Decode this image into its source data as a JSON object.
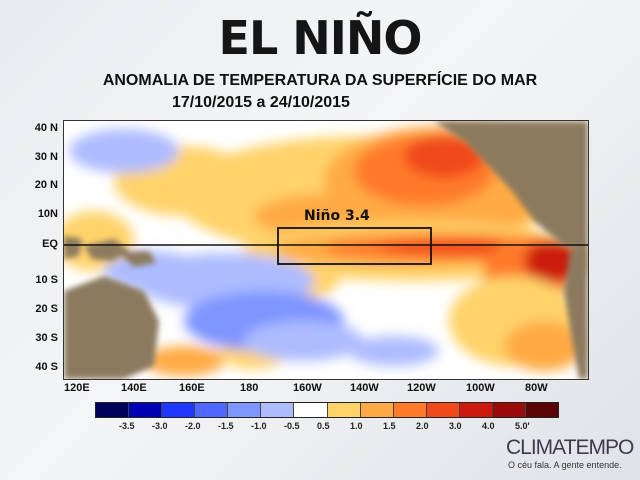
{
  "header": {
    "title": "EL NIÑO",
    "subtitle": "ANOMALIA DE TEMPERATURA DA SUPERFÍCIE DO MAR",
    "dates": "17/10/2015 a 24/10/2015"
  },
  "map": {
    "lat_labels": [
      "40 N",
      "30 N",
      "20 N",
      "10N",
      "EQ",
      "10 S",
      "20 S",
      "30 S",
      "40 S"
    ],
    "lon_labels": [
      "120E",
      "140E",
      "160E",
      "180",
      "160W",
      "140W",
      "120W",
      "100W",
      "80W"
    ],
    "region_label": "Niño 3.4",
    "colors": {
      "land": "#8c7a5e",
      "ocean_neutral": "#ffffff"
    }
  },
  "legend": {
    "labels": [
      "-3.5",
      "-3.0",
      "-2.0",
      "-1.5",
      "-1.0",
      "-0.5",
      "0.5",
      "1.0",
      "1.5",
      "2.0",
      "3.0",
      "4.0",
      "5.0'"
    ],
    "colors": [
      "#00005a",
      "#0000b4",
      "#1f37ff",
      "#5068ff",
      "#7f95ff",
      "#adbcff",
      "#ffffff",
      "#ffd36a",
      "#ffaa44",
      "#ff7a2a",
      "#f04a1a",
      "#cc1a10",
      "#9a0a0a",
      "#5a0505"
    ]
  },
  "brand": {
    "name": "CLIMATEMPO",
    "slogan": "O céu fala. A gente entende."
  }
}
